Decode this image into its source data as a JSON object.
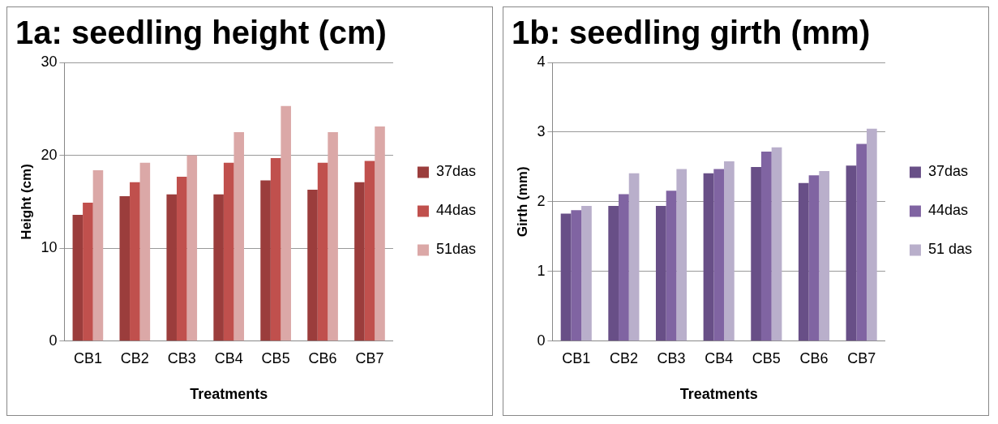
{
  "chart_data": [
    {
      "type": "bar",
      "title": "1a: seedling height (cm)",
      "xlabel": "Treatments",
      "ylabel": "Height (cm)",
      "categories": [
        "CB1",
        "CB2",
        "CB3",
        "CB4",
        "CB5",
        "CB6",
        "CB7"
      ],
      "series": [
        {
          "name": "37das",
          "color": "#9b3d3c",
          "values": [
            13.6,
            15.6,
            15.8,
            15.8,
            17.3,
            16.3,
            17.1
          ]
        },
        {
          "name": "44das",
          "color": "#c0504d",
          "values": [
            14.9,
            17.1,
            17.7,
            19.2,
            19.7,
            19.2,
            19.4
          ]
        },
        {
          "name": "51das",
          "color": "#dba8a7",
          "values": [
            18.4,
            19.2,
            20.0,
            22.5,
            25.3,
            22.5,
            23.1
          ]
        }
      ],
      "ylim": [
        0,
        30
      ],
      "yticks": [
        0,
        10,
        20,
        30
      ],
      "grid": "y",
      "legend": "right"
    },
    {
      "type": "bar",
      "title": "1b: seedling girth (mm)",
      "xlabel": "Treatments",
      "ylabel": "Girth (mm)",
      "categories": [
        "CB1",
        "CB2",
        "CB3",
        "CB4",
        "CB5",
        "CB6",
        "CB7"
      ],
      "series": [
        {
          "name": "37das",
          "color": "#684f87",
          "values": [
            1.83,
            1.94,
            1.94,
            2.41,
            2.5,
            2.27,
            2.52
          ]
        },
        {
          "name": "44das",
          "color": "#8064a2",
          "values": [
            1.88,
            2.11,
            2.16,
            2.47,
            2.72,
            2.38,
            2.83
          ]
        },
        {
          "name": "51 das",
          "color": "#b9afcb",
          "values": [
            1.94,
            2.41,
            2.47,
            2.58,
            2.78,
            2.44,
            3.05
          ]
        }
      ],
      "ylim": [
        0,
        4
      ],
      "yticks": [
        0,
        1,
        2,
        3,
        4
      ],
      "grid": "y",
      "legend": "right"
    }
  ]
}
